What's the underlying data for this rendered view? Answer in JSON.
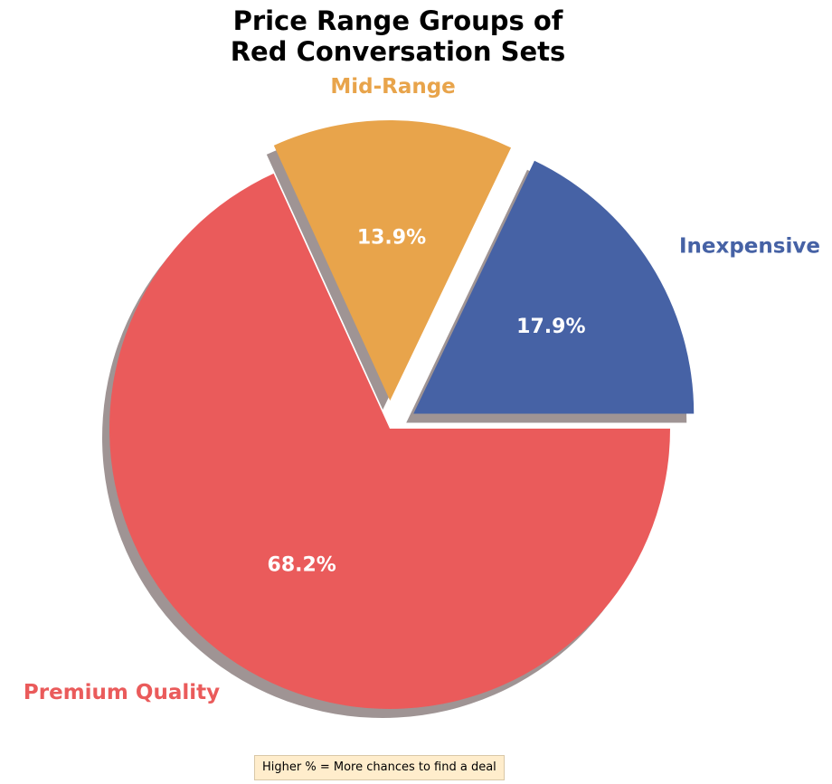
{
  "chart_data": {
    "type": "pie",
    "title_lines": [
      "Price Range Groups of",
      "Red Conversation Sets"
    ],
    "slices": [
      {
        "label": "Inexpensive",
        "value": 17.9,
        "pct_label": "17.9%",
        "color": "#4662a5"
      },
      {
        "label": "Mid-Range",
        "value": 13.9,
        "pct_label": "13.9%",
        "color": "#e8a44b"
      },
      {
        "label": "Premium Quality",
        "value": 68.2,
        "pct_label": "68.2%",
        "color": "#ea5b5b"
      }
    ],
    "start_angle_deg": 0,
    "direction": "counterclockwise",
    "exploded": true,
    "shadow": true
  },
  "note": "Higher % = More chances to find a deal"
}
